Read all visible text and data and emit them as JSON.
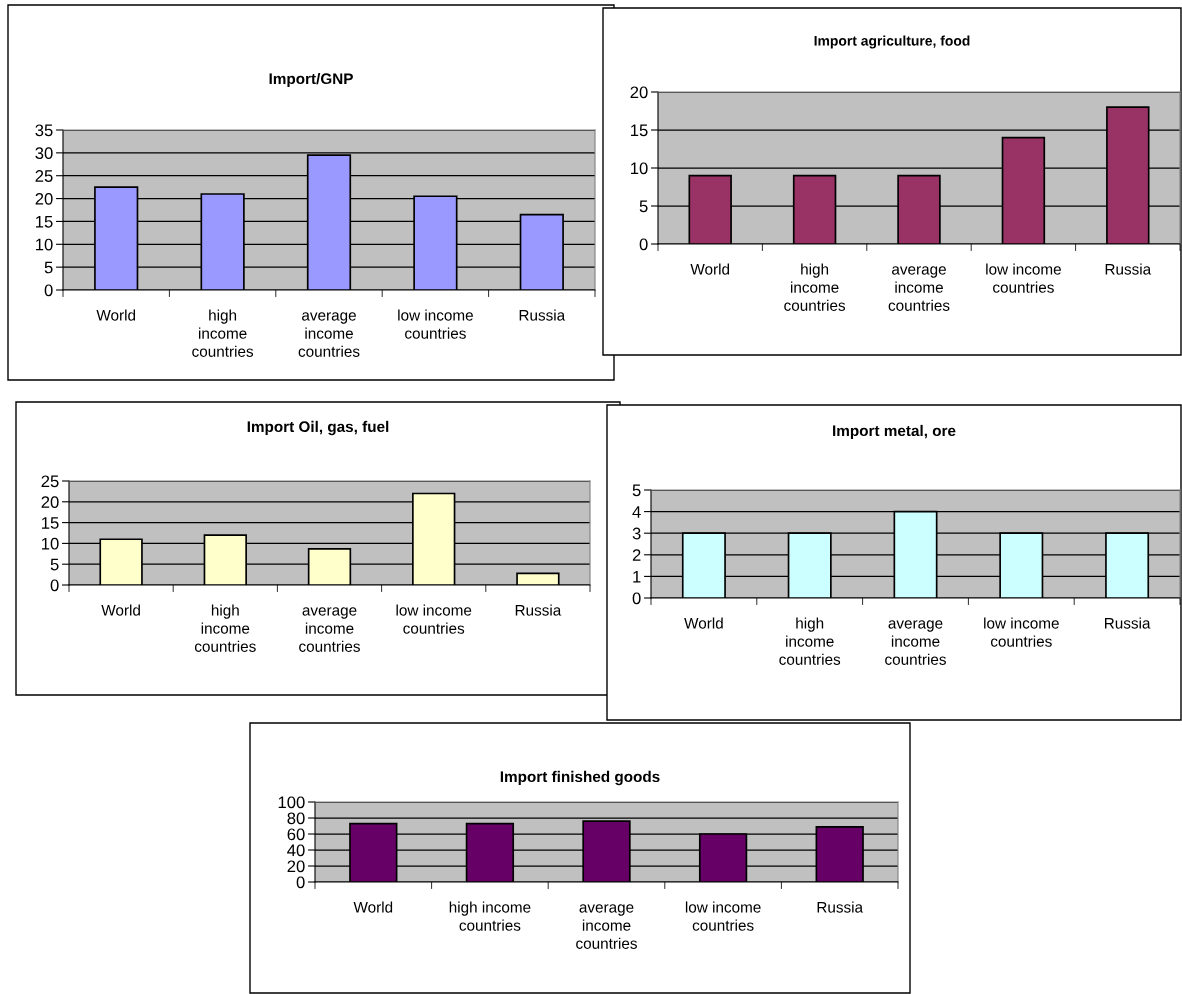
{
  "chart_data": [
    {
      "type": "bar",
      "title": "Import/GNP",
      "categories": [
        "World",
        "high\nincome\ncountries",
        "average\nincome\ncountries",
        "low income\ncountries",
        "Russia"
      ],
      "values": [
        22.5,
        21,
        29.5,
        20.5,
        16.5
      ],
      "color": "#9999ff",
      "ylim": [
        0,
        35
      ],
      "yticks": [
        0,
        5,
        10,
        15,
        20,
        25,
        30,
        35
      ],
      "grid": "y",
      "legend": false
    },
    {
      "type": "bar",
      "title": "Import agriculture, food",
      "categories": [
        "World",
        "high\nincome\ncountries",
        "average\nincome\ncountries",
        "low income\ncountries",
        "Russia"
      ],
      "values": [
        9,
        9,
        9,
        14,
        18
      ],
      "color": "#993366",
      "ylim": [
        0,
        20
      ],
      "yticks": [
        0,
        5,
        10,
        15,
        20
      ],
      "grid": "y",
      "legend": false
    },
    {
      "type": "bar",
      "title": "Import Oil, gas, fuel",
      "categories": [
        "World",
        "high\nincome\ncountries",
        "average\nincome\ncountries",
        "low income\ncountries",
        "Russia"
      ],
      "values": [
        11,
        12,
        8.7,
        22,
        2.8
      ],
      "color": "#ffffcc",
      "ylim": [
        0,
        25
      ],
      "yticks": [
        0,
        5,
        10,
        15,
        20,
        25
      ],
      "grid": "y",
      "legend": false
    },
    {
      "type": "bar",
      "title": "Import metal, ore",
      "categories": [
        "World",
        "high\nincome\ncountries",
        "average\nincome\ncountries",
        "low income\ncountries",
        "Russia"
      ],
      "values": [
        3,
        3,
        4,
        3,
        3
      ],
      "color": "#ccffff",
      "ylim": [
        0,
        5
      ],
      "yticks": [
        0,
        1,
        2,
        3,
        4,
        5
      ],
      "grid": "y",
      "legend": false
    },
    {
      "type": "bar",
      "title": "Import finished goods",
      "categories": [
        "World",
        "high income\ncountries",
        "average\nincome\ncountries",
        "low income\ncountries",
        "Russia"
      ],
      "values": [
        73,
        73,
        76,
        60,
        69
      ],
      "color": "#660066",
      "ylim": [
        0,
        100
      ],
      "yticks": [
        0,
        20,
        40,
        60,
        80,
        100
      ],
      "grid": "y",
      "legend": false
    }
  ]
}
